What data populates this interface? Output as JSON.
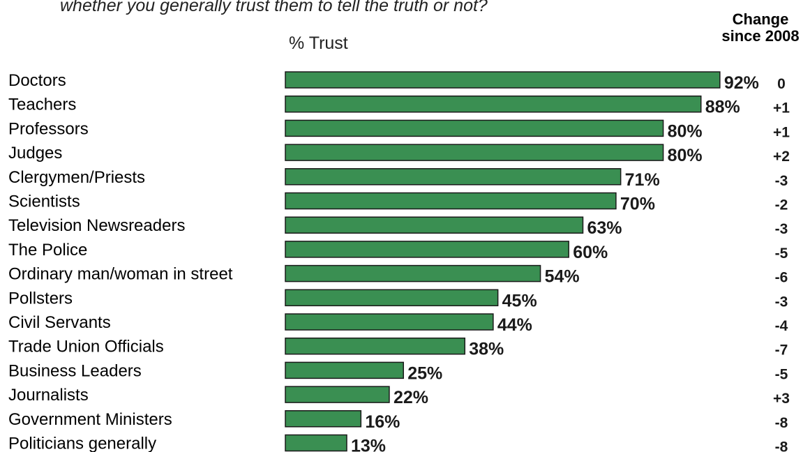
{
  "chart_data": {
    "type": "bar",
    "orientation": "horizontal",
    "subtitle": "whether you generally trust them to tell the truth or not?",
    "xlabel": "% Trust",
    "change_header": [
      "Change",
      "since 2008"
    ],
    "xlim": [
      0,
      100
    ],
    "bar_color": "#3a8f52",
    "categories": [
      "Doctors",
      "Teachers",
      "Professors",
      "Judges",
      "Clergymen/Priests",
      "Scientists",
      "Television Newsreaders",
      "The Police",
      "Ordinary man/woman in street",
      "Pollsters",
      "Civil Servants",
      "Trade Union Officials",
      "Business Leaders",
      "Journalists",
      "Government Ministers",
      "Politicians generally"
    ],
    "values": [
      92,
      88,
      80,
      80,
      71,
      70,
      63,
      60,
      54,
      45,
      44,
      38,
      25,
      22,
      16,
      13
    ],
    "value_labels": [
      "92%",
      "88%",
      "80%",
      "80%",
      "71%",
      "70%",
      "63%",
      "60%",
      "54%",
      "45%",
      "44%",
      "38%",
      "25%",
      "22%",
      "16%",
      "13%"
    ],
    "changes": [
      "0",
      "+1",
      "+1",
      "+2",
      "-3",
      "-2",
      "-3",
      "-5",
      "-6",
      "-3",
      "-4",
      "-7",
      "-5",
      "+3",
      "-8",
      "-8"
    ]
  }
}
